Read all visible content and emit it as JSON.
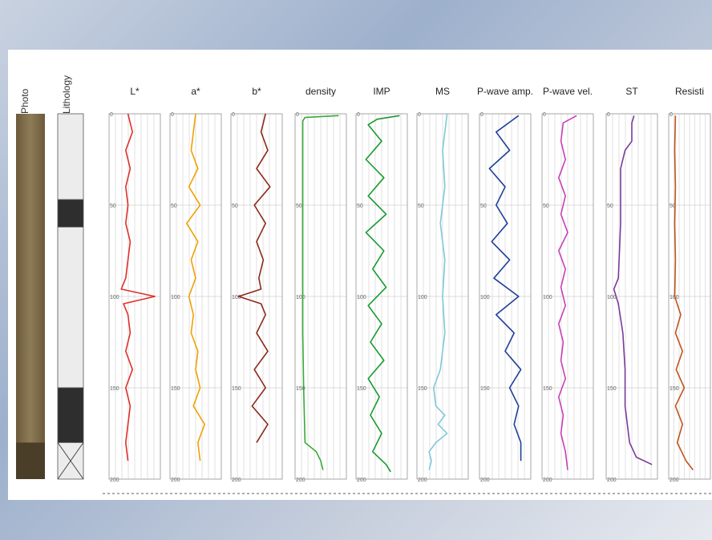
{
  "header": {
    "photo_label": "Photo",
    "lithology_label": "Lithology"
  },
  "colors": {
    "L*": "#e0302a",
    "a*": "#f0a000",
    "b*": "#8a2a1a",
    "density": "#3aa83a",
    "IMP": "#1a9a30",
    "MS": "#7fc8d8",
    "P-wave amp.": "#1f3f9a",
    "P-wave vel.": "#c83fb8",
    "ST": "#7a3a9a",
    "Resisti": "#c0541a"
  },
  "chart_data": {
    "type": "line",
    "orientation": "vertical-depth",
    "depth_ticks": [
      "0",
      "50",
      "100",
      "150",
      "200"
    ],
    "ylim": [
      0,
      200
    ],
    "grid": true,
    "lithology": [
      {
        "from": 0,
        "to": 47,
        "fill": "light-gray"
      },
      {
        "from": 47,
        "to": 62,
        "fill": "dark"
      },
      {
        "from": 62,
        "to": 150,
        "fill": "light-gray"
      },
      {
        "from": 150,
        "to": 180,
        "fill": "dark"
      },
      {
        "from": 180,
        "to": 200,
        "fill": "crossed-box"
      }
    ],
    "series": [
      {
        "name": "L*",
        "depth": [
          0,
          10,
          20,
          30,
          40,
          50,
          60,
          70,
          80,
          90,
          96,
          100,
          104,
          110,
          120,
          130,
          140,
          150,
          160,
          170,
          180,
          190
        ],
        "values": [
          0.35,
          0.45,
          0.3,
          0.4,
          0.3,
          0.35,
          0.3,
          0.4,
          0.35,
          0.3,
          0.2,
          0.95,
          0.25,
          0.35,
          0.4,
          0.3,
          0.45,
          0.3,
          0.4,
          0.35,
          0.3,
          0.35
        ]
      },
      {
        "name": "a*",
        "depth": [
          0,
          10,
          20,
          30,
          40,
          50,
          60,
          70,
          80,
          90,
          100,
          110,
          120,
          130,
          140,
          150,
          160,
          170,
          180,
          190
        ],
        "values": [
          0.5,
          0.45,
          0.4,
          0.55,
          0.35,
          0.6,
          0.3,
          0.55,
          0.4,
          0.5,
          0.35,
          0.45,
          0.4,
          0.55,
          0.5,
          0.6,
          0.45,
          0.7,
          0.55,
          0.6
        ]
      },
      {
        "name": "b*",
        "depth": [
          0,
          10,
          20,
          30,
          40,
          50,
          60,
          70,
          80,
          90,
          96,
          100,
          104,
          110,
          120,
          130,
          140,
          150,
          160,
          170,
          180
        ],
        "values": [
          0.7,
          0.6,
          0.75,
          0.5,
          0.8,
          0.45,
          0.7,
          0.5,
          0.65,
          0.55,
          0.6,
          0.1,
          0.6,
          0.7,
          0.5,
          0.75,
          0.45,
          0.7,
          0.4,
          0.75,
          0.5
        ]
      },
      {
        "name": "density",
        "depth": [
          1,
          2,
          4,
          30,
          60,
          90,
          120,
          150,
          180,
          185,
          190,
          195
        ],
        "values": [
          0.9,
          0.15,
          0.1,
          0.1,
          0.1,
          0.1,
          0.1,
          0.12,
          0.15,
          0.4,
          0.5,
          0.55
        ]
      },
      {
        "name": "IMP",
        "depth": [
          1,
          3,
          6,
          15,
          25,
          35,
          45,
          55,
          65,
          75,
          85,
          95,
          105,
          115,
          125,
          135,
          145,
          155,
          165,
          175,
          185,
          192,
          196
        ],
        "values": [
          0.9,
          0.4,
          0.2,
          0.5,
          0.15,
          0.55,
          0.2,
          0.6,
          0.15,
          0.55,
          0.3,
          0.6,
          0.2,
          0.5,
          0.25,
          0.55,
          0.2,
          0.45,
          0.25,
          0.5,
          0.3,
          0.6,
          0.7
        ]
      },
      {
        "name": "MS",
        "depth": [
          0,
          20,
          40,
          60,
          80,
          100,
          120,
          140,
          150,
          160,
          165,
          170,
          175,
          180,
          185,
          190,
          195
        ],
        "values": [
          0.6,
          0.5,
          0.55,
          0.45,
          0.55,
          0.5,
          0.55,
          0.45,
          0.3,
          0.35,
          0.55,
          0.4,
          0.6,
          0.35,
          0.2,
          0.25,
          0.2
        ]
      },
      {
        "name": "P-wave amp.",
        "depth": [
          1,
          10,
          20,
          30,
          40,
          50,
          60,
          70,
          80,
          90,
          100,
          110,
          120,
          130,
          140,
          150,
          160,
          170,
          180,
          190
        ],
        "values": [
          0.8,
          0.3,
          0.6,
          0.15,
          0.5,
          0.3,
          0.55,
          0.2,
          0.6,
          0.25,
          0.8,
          0.3,
          0.7,
          0.5,
          0.85,
          0.6,
          0.8,
          0.7,
          0.85,
          0.85
        ]
      },
      {
        "name": "P-wave vel.",
        "depth": [
          1,
          5,
          15,
          25,
          35,
          45,
          55,
          65,
          75,
          85,
          95,
          105,
          115,
          125,
          135,
          145,
          155,
          165,
          175,
          185,
          195
        ],
        "values": [
          0.7,
          0.4,
          0.35,
          0.45,
          0.3,
          0.45,
          0.35,
          0.5,
          0.3,
          0.45,
          0.35,
          0.45,
          0.3,
          0.4,
          0.35,
          0.45,
          0.3,
          0.4,
          0.35,
          0.45,
          0.5
        ]
      },
      {
        "name": "ST",
        "depth": [
          1,
          5,
          15,
          20,
          30,
          60,
          90,
          96,
          100,
          104,
          120,
          140,
          160,
          180,
          188,
          192
        ],
        "values": [
          0.55,
          0.5,
          0.5,
          0.35,
          0.25,
          0.25,
          0.2,
          0.1,
          0.15,
          0.2,
          0.3,
          0.35,
          0.35,
          0.45,
          0.6,
          0.95
        ]
      },
      {
        "name": "Resisti",
        "depth": [
          1,
          20,
          40,
          60,
          80,
          100,
          110,
          120,
          130,
          140,
          150,
          160,
          170,
          180,
          190,
          195
        ],
        "values": [
          0.1,
          0.08,
          0.1,
          0.08,
          0.1,
          0.08,
          0.25,
          0.1,
          0.3,
          0.12,
          0.35,
          0.1,
          0.3,
          0.15,
          0.4,
          0.6
        ]
      }
    ]
  }
}
